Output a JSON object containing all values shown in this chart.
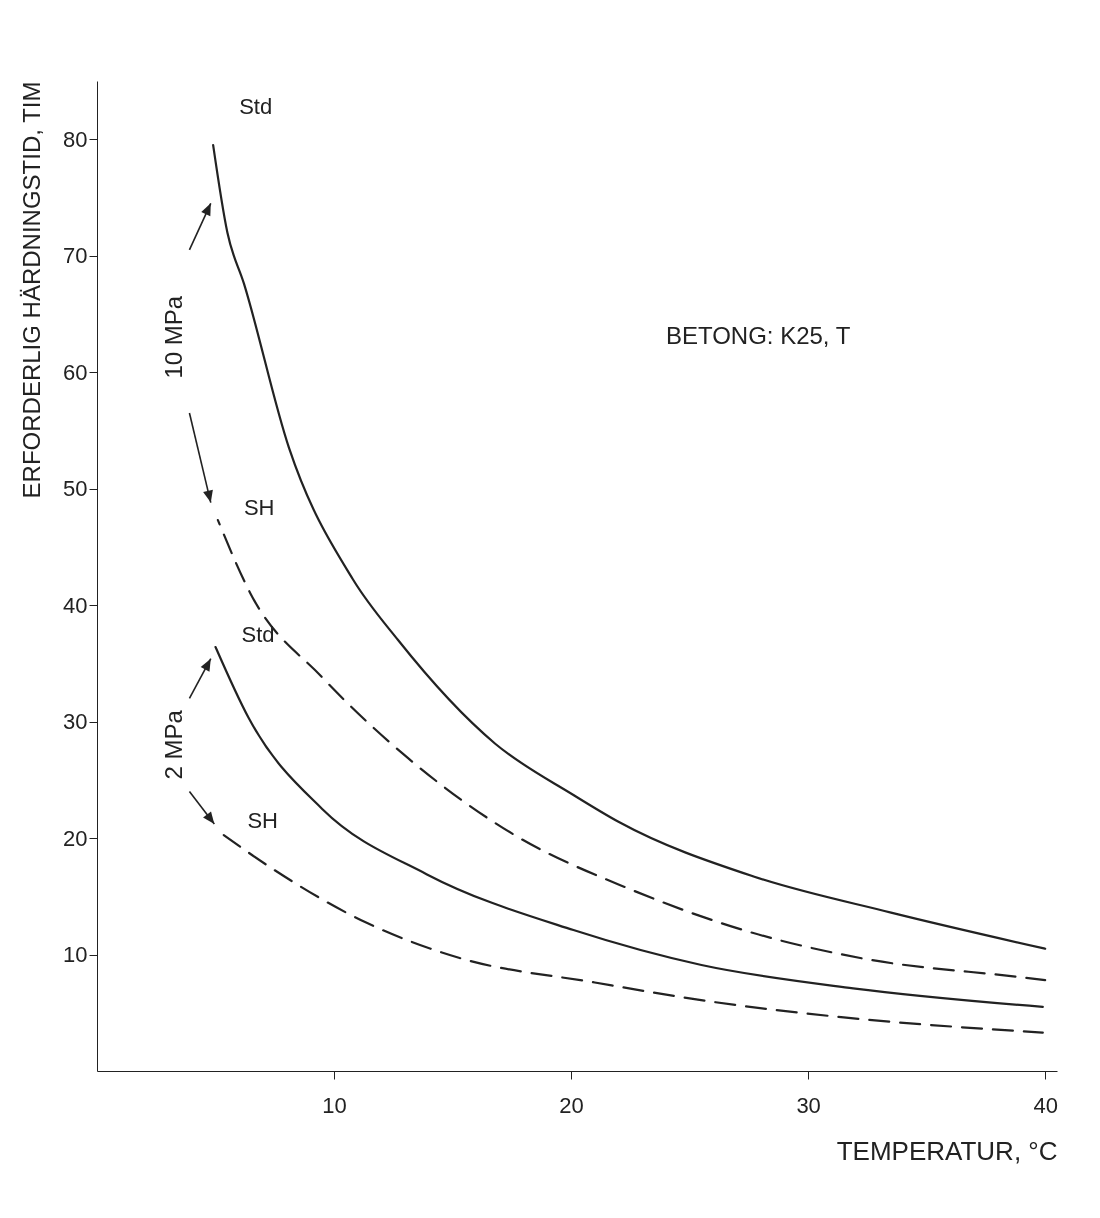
{
  "chart_data": {
    "type": "line",
    "xlabel": "TEMPERATUR, °C",
    "ylabel": "ERFORDERLIG HÄRDNINGSTID, TIM",
    "xlim": [
      0,
      40.5
    ],
    "ylim": [
      0,
      85
    ],
    "xticks": [
      10,
      20,
      30,
      40
    ],
    "yticks": [
      10,
      20,
      30,
      40,
      50,
      60,
      70,
      80
    ],
    "grid": false,
    "marker": "none",
    "series": [
      {
        "color": "#222222",
        "line_style": "solid",
        "x": [
          4.9,
          5.5,
          6.2,
          8.1,
          10.8,
          12.7,
          16.8,
          20.1,
          22,
          27.7,
          33.5,
          40
        ],
        "values": [
          79.5,
          72,
          67.6,
          53.5,
          42.2,
          37,
          28.1,
          23.7,
          21.4,
          16.7,
          13.6,
          10.5
        ]
      },
      {
        "color": "#222222",
        "line_style": "dashed",
        "x": [
          5.1,
          6.5,
          9.5,
          13.1,
          17.5,
          22.5,
          27.6,
          32.2,
          39.2,
          40
        ],
        "values": [
          47.3,
          40.9,
          33.8,
          26.9,
          20.4,
          15.6,
          11.9,
          9.7,
          8.0,
          7.8
        ]
      },
      {
        "color": "#222222",
        "line_style": "solid",
        "x": [
          5.0,
          6.4,
          9.5,
          13.9,
          20.1,
          25.5,
          31.9,
          39.9
        ],
        "values": [
          36.4,
          30.3,
          22.5,
          16.9,
          12.1,
          9.1,
          7.1,
          5.5
        ]
      },
      {
        "color": "#222222",
        "line_style": "dashed",
        "x": [
          5.25,
          7.3,
          11.4,
          15.3,
          21,
          26.1,
          31.5,
          39.9
        ],
        "values": [
          20.4,
          17.5,
          12.7,
          9.7,
          7.6,
          5.9,
          4.6,
          3.3
        ]
      }
    ],
    "annotations": [
      "BETONG: K25, T",
      "10 MPa",
      "2 MPa",
      {
        "text": "Std",
        "x": 4.9,
        "y": 79.5
      },
      {
        "text": "SH",
        "x": 5.1,
        "y": 47.3
      },
      {
        "text": "Std",
        "x": 5.0,
        "y": 36.4
      },
      {
        "text": "SH",
        "x": 5.25,
        "y": 20.4
      }
    ]
  }
}
